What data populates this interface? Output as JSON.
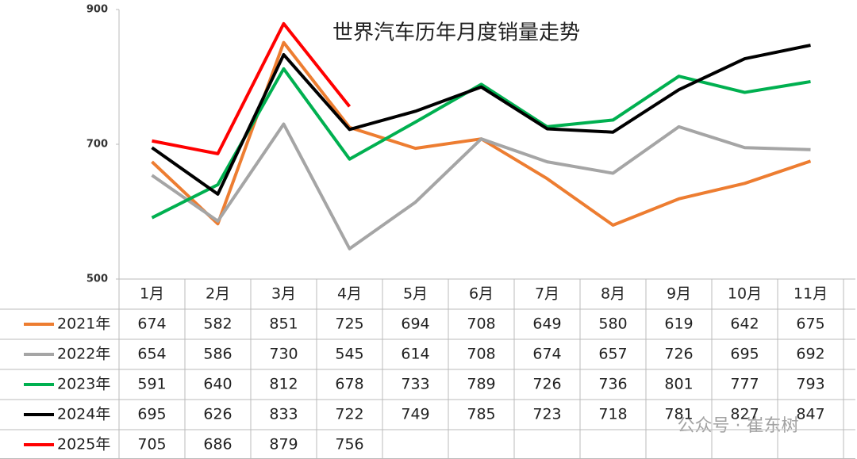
{
  "chart_data": {
    "type": "line",
    "title": "世界汽车历年月度销量走势",
    "categories": [
      "1月",
      "2月",
      "3月",
      "4月",
      "5月",
      "6月",
      "7月",
      "8月",
      "9月",
      "10月",
      "11月"
    ],
    "series": [
      {
        "name": "2021年",
        "color": "#ed7d31",
        "values": [
          674,
          582,
          851,
          725,
          694,
          708,
          649,
          580,
          619,
          642,
          675
        ]
      },
      {
        "name": "2022年",
        "color": "#a5a5a5",
        "values": [
          654,
          586,
          730,
          545,
          614,
          708,
          674,
          657,
          726,
          695,
          692
        ]
      },
      {
        "name": "2023年",
        "color": "#00b050",
        "values": [
          591,
          640,
          812,
          678,
          733,
          789,
          726,
          736,
          801,
          777,
          793
        ]
      },
      {
        "name": "2024年",
        "color": "#000000",
        "values": [
          695,
          626,
          833,
          722,
          749,
          785,
          723,
          718,
          781,
          827,
          847
        ]
      },
      {
        "name": "2025年",
        "color": "#ff0000",
        "values": [
          705,
          686,
          879,
          756,
          null,
          null,
          null,
          null,
          null,
          null,
          null
        ]
      }
    ],
    "ylim": [
      500,
      900
    ],
    "yticks": [
      500,
      700,
      900
    ],
    "grid": false,
    "watermark": "公众号 · 崔东树"
  }
}
